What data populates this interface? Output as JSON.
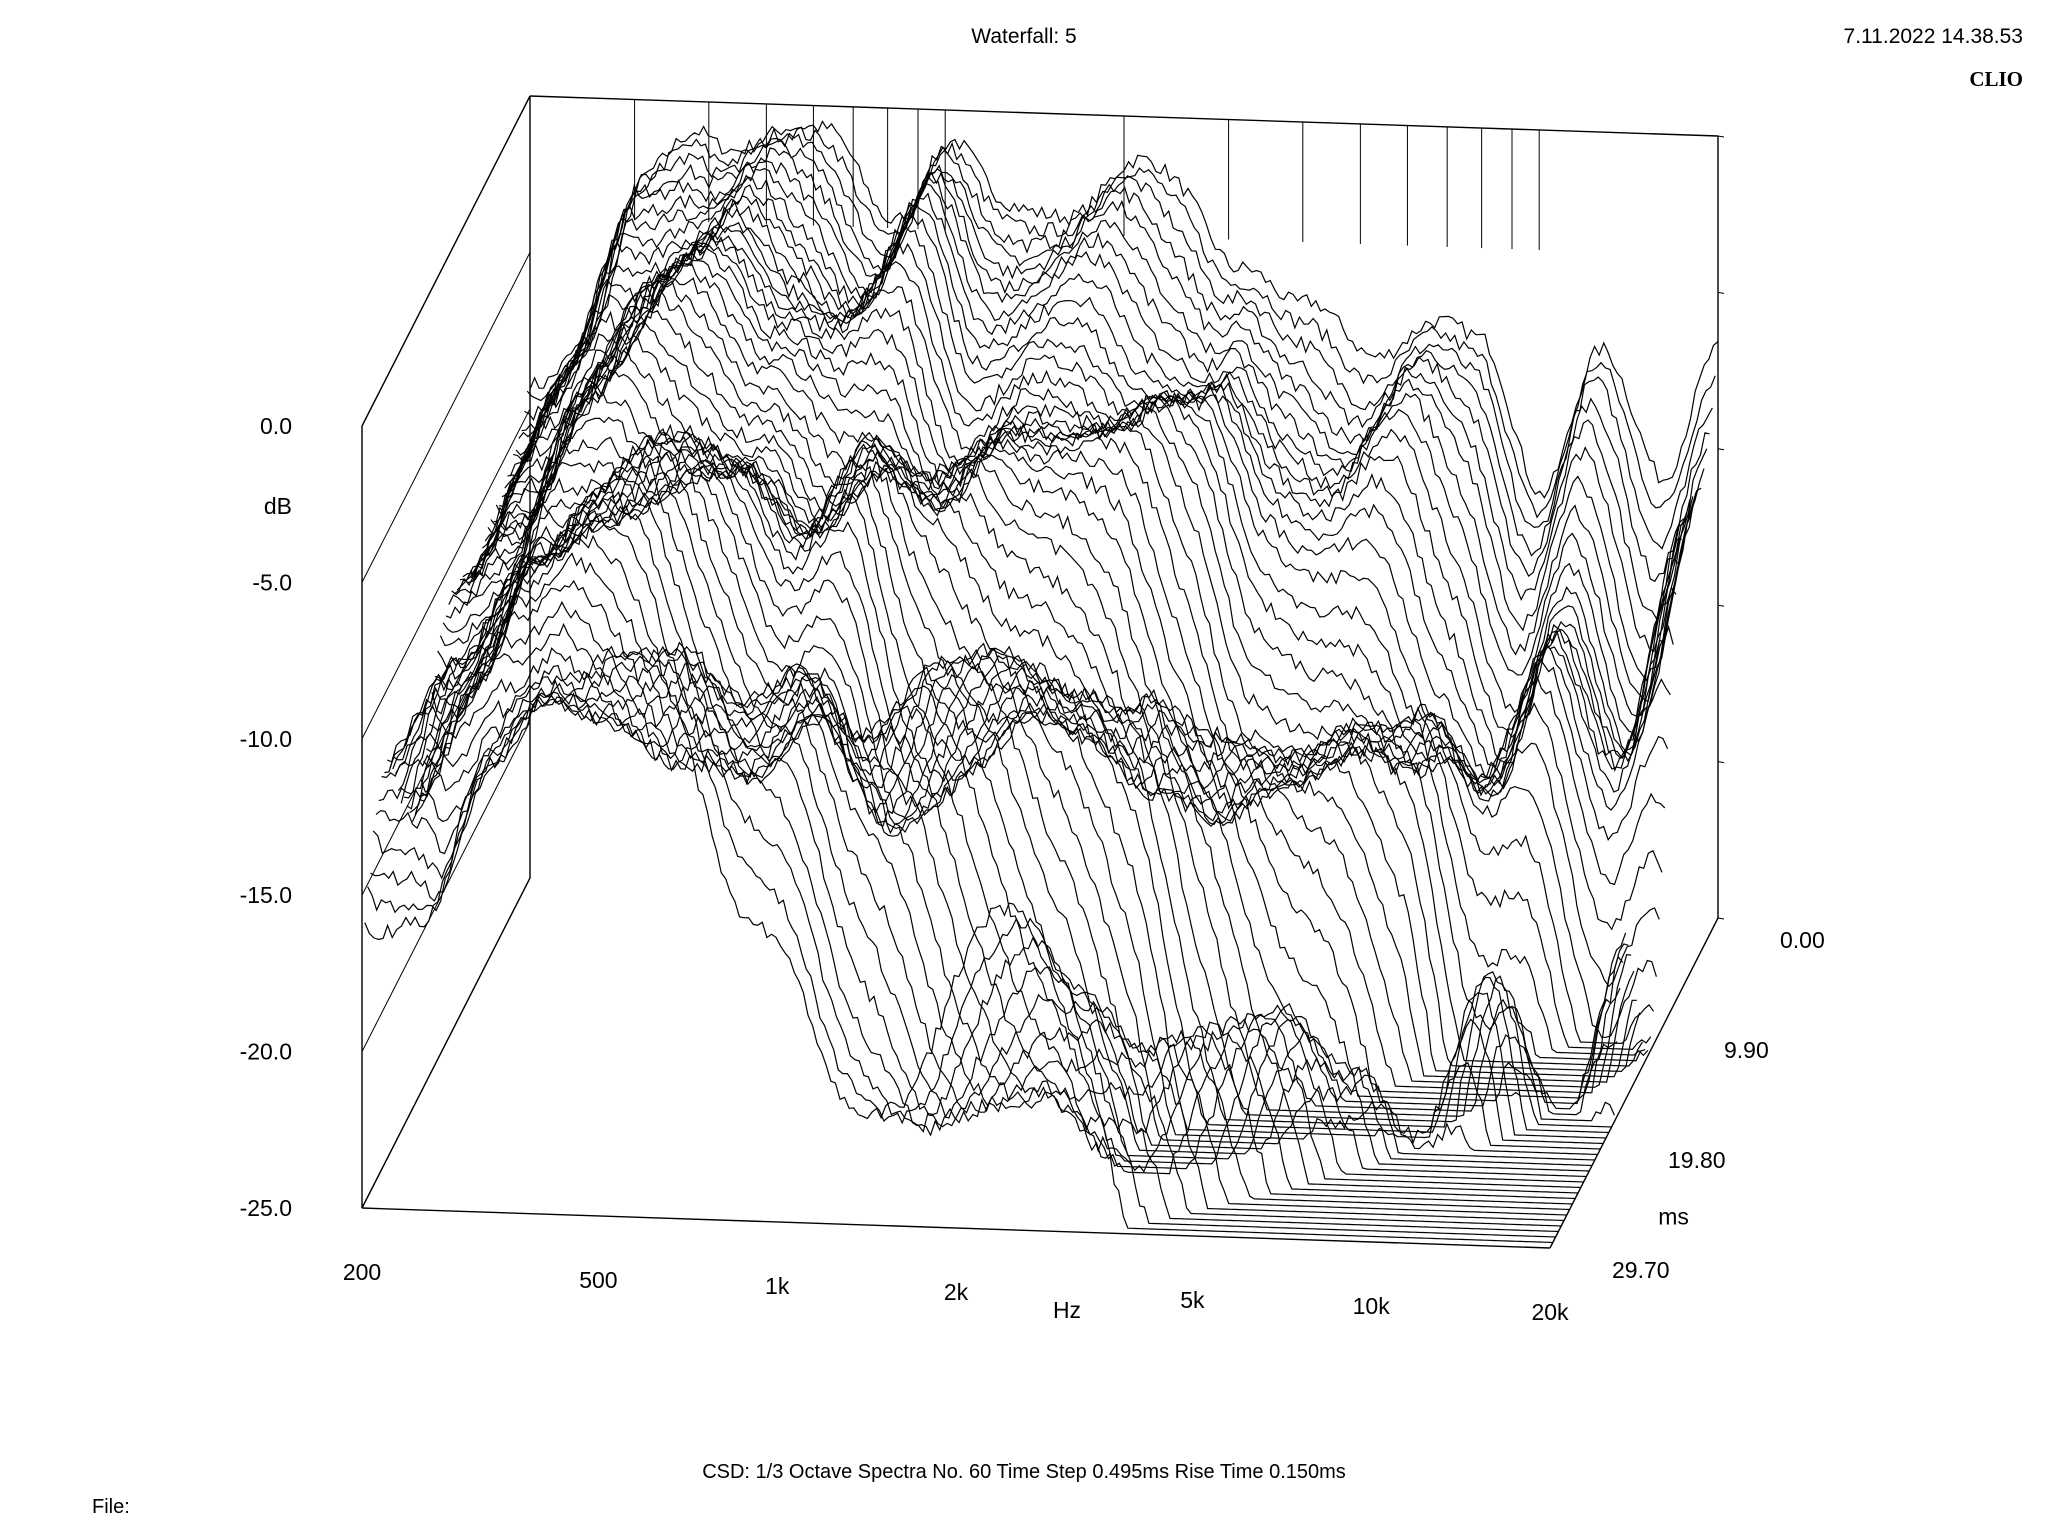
{
  "header": {
    "title": "Waterfall: 5",
    "timestamp": "7.11.2022 14.38.53",
    "brand": "CLIO"
  },
  "footer": {
    "info": "CSD:   1/3 Octave   Spectra No. 60   Time Step 0.495ms   Rise Time 0.150ms",
    "file_label": "File:"
  },
  "chart_data": {
    "type": "waterfall",
    "title": "Waterfall: 5",
    "x_axis": {
      "label": "Hz",
      "scale": "log",
      "range": [
        200,
        20000
      ],
      "ticks": [
        {
          "v": 200,
          "label": "200"
        },
        {
          "v": 500,
          "label": "500"
        },
        {
          "v": 1000,
          "label": "1k"
        },
        {
          "v": 2000,
          "label": "2k"
        },
        {
          "v": 5000,
          "label": "5k"
        },
        {
          "v": 10000,
          "label": "10k"
        },
        {
          "v": 20000,
          "label": "20k"
        }
      ]
    },
    "y_axis": {
      "label": "dB",
      "range": [
        -25,
        0
      ],
      "ticks": [
        {
          "v": 0,
          "label": "0.0"
        },
        {
          "v": -5,
          "label": "-5.0"
        },
        {
          "v": -10,
          "label": "-10.0"
        },
        {
          "v": -15,
          "label": "-15.0"
        },
        {
          "v": -20,
          "label": "-20.0"
        },
        {
          "v": -25,
          "label": "-25.0"
        }
      ]
    },
    "z_axis": {
      "label": "ms",
      "range": [
        0,
        29.7
      ],
      "ticks": [
        {
          "v": 0,
          "label": "0.00"
        },
        {
          "v": 9.9,
          "label": "9.90"
        },
        {
          "v": 19.8,
          "label": "19.80"
        },
        {
          "v": 29.7,
          "label": "29.70"
        }
      ]
    },
    "spectra_count": 60,
    "time_step_ms": 0.495,
    "rise_time_ms": 0.15,
    "resolution": "1/3 Octave",
    "first_spectrum_db": {
      "freqs": [
        200,
        250,
        315,
        400,
        500,
        630,
        800,
        1000,
        1250,
        1600,
        2000,
        2500,
        3150,
        4000,
        5000,
        6300,
        8000,
        10000,
        12500,
        16000,
        20000
      ],
      "values": [
        -9.5,
        -7.0,
        -3.0,
        -1.0,
        -0.5,
        -1.5,
        -3.0,
        -1.0,
        -3.5,
        -2.5,
        -2.0,
        -2.5,
        -4.0,
        -6.5,
        -7.0,
        -6.0,
        -7.5,
        -11.0,
        -7.0,
        -11.5,
        -6.0
      ]
    }
  }
}
